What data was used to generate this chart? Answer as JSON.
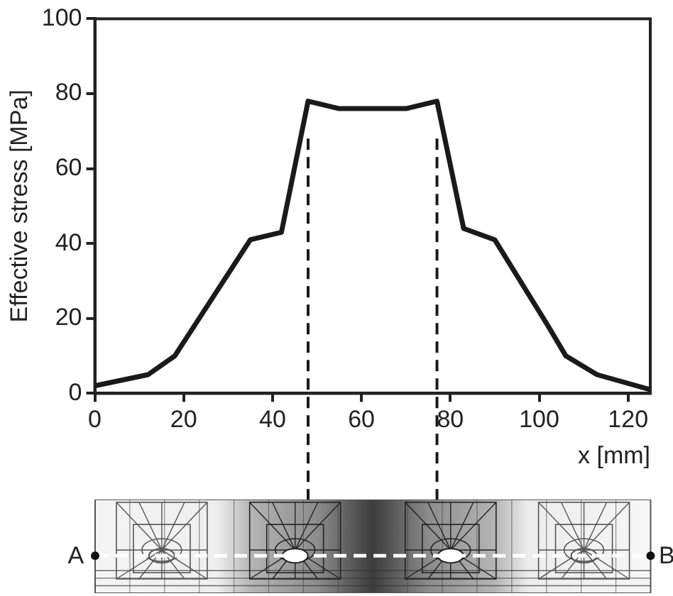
{
  "chart_data": {
    "type": "line",
    "xlabel": "x [mm]",
    "ylabel": "Effective stress [MPa]",
    "x": [
      0,
      12,
      18,
      35,
      42,
      48,
      55,
      70,
      77,
      83,
      90,
      102,
      106,
      113,
      125
    ],
    "values": [
      2,
      5,
      10,
      41,
      43,
      78,
      76,
      76,
      78,
      44,
      41,
      18,
      10,
      5,
      1
    ],
    "color": "#1a1a1a",
    "xlim": [
      0,
      125
    ],
    "ylim": [
      0,
      100
    ],
    "xticks": [
      0,
      20,
      40,
      60,
      80,
      100,
      120
    ],
    "yticks": [
      0,
      20,
      40,
      60,
      80,
      100
    ],
    "grid": false,
    "legend": false,
    "marker": "none",
    "line_style": "solid",
    "ref_lines": [
      {
        "axis": "x",
        "value": 48,
        "color": "#1a1a1a",
        "line_style": "dashed"
      },
      {
        "axis": "x",
        "value": 77,
        "color": "#1a1a1a",
        "line_style": "dashed"
      }
    ],
    "annotations": [
      "A",
      "B"
    ]
  }
}
